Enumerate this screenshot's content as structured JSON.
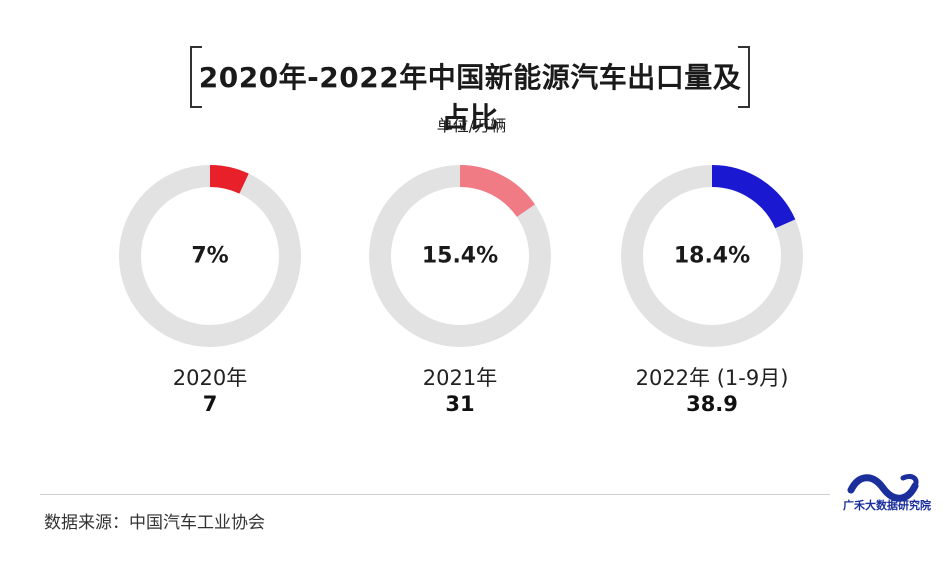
{
  "header": {
    "title": "2020年-2022年中国新能源汽车出口量及占比",
    "unit": "单位/万辆"
  },
  "chart_data": {
    "type": "pie",
    "title": "2020年-2022年中国新能源汽车出口量及占比",
    "unit": "单位/万辆",
    "series": [
      {
        "name": "2020年",
        "share_percent": 7,
        "share_label": "7%",
        "value": 7,
        "value_label": "7",
        "color": "#e8202a"
      },
      {
        "name": "2021年",
        "share_percent": 15.4,
        "share_label": "15.4%",
        "value": 31,
        "value_label": "31",
        "color": "#f07b85"
      },
      {
        "name": "2022年 (1-9月)",
        "share_percent": 18.4,
        "share_label": "18.4%",
        "value": 38.9,
        "value_label": "38.9",
        "color": "#1a18d0"
      }
    ],
    "track_color": "#e2e2e2"
  },
  "footer": {
    "source": "数据来源：中国汽车工业协会",
    "logo_text": "广禾大数据研究院"
  }
}
